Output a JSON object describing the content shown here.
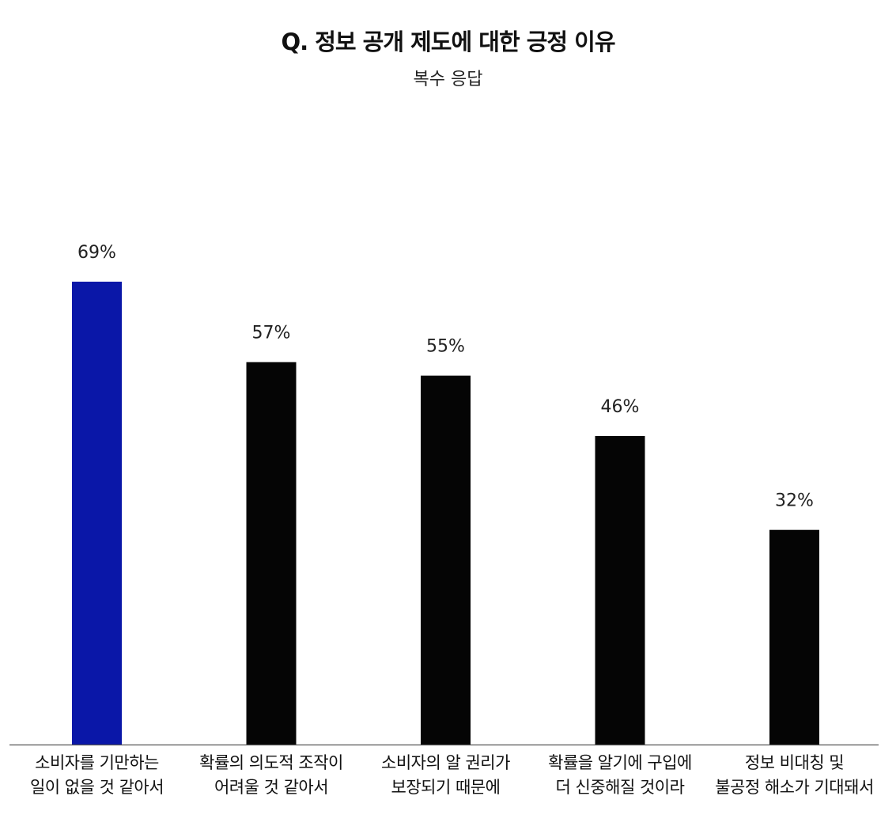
{
  "chart_data": {
    "type": "bar",
    "title": "Q. 정보 공개 제도에 대한 긍정 이유",
    "subtitle": "복수 응답",
    "categories": [
      [
        "소비자를 기만하는",
        "일이 없을 것 같아서"
      ],
      [
        "확률의 의도적 조작이",
        "어려울 것 같아서"
      ],
      [
        "소비자의 알 권리가",
        "보장되기 때문에"
      ],
      [
        "확률을 알기에 구입에",
        "더 신중해질 것이라"
      ],
      [
        "정보 비대칭 및",
        "불공정 해소가 기대돼서"
      ]
    ],
    "values": [
      69,
      57,
      55,
      46,
      32
    ],
    "value_labels": [
      "69%",
      "57%",
      "55%",
      "46%",
      "32%"
    ],
    "ylim": [
      0,
      69
    ],
    "xlabel": "",
    "ylabel": "",
    "grid": false,
    "colors": {
      "highlight": "#0a17a8",
      "default": "#050505",
      "axis": "#555555"
    },
    "highlight_index": 0
  }
}
